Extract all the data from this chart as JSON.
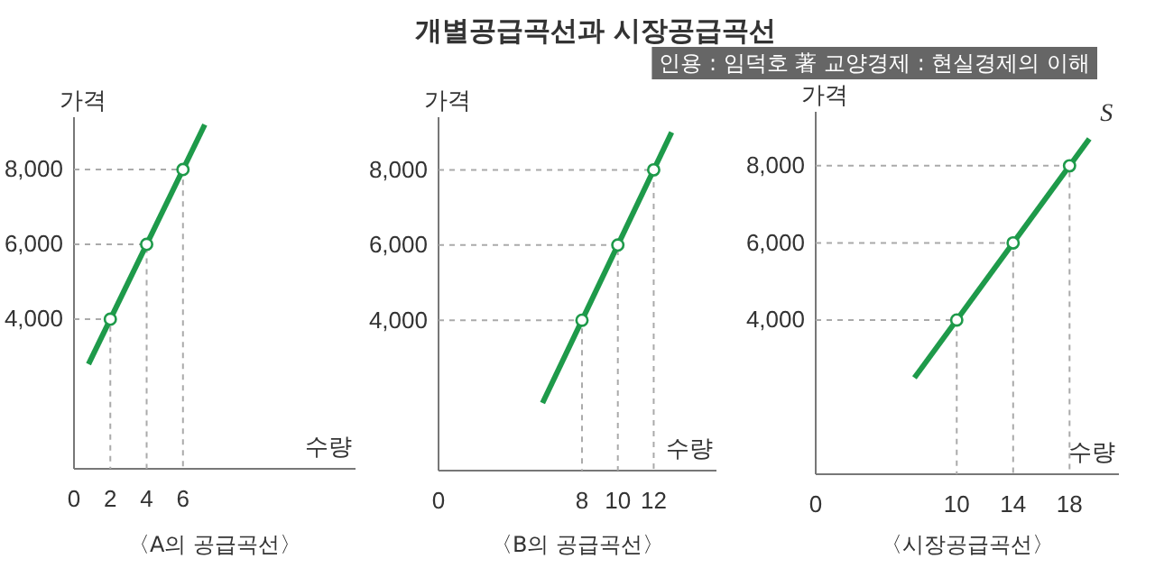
{
  "chart_data": [
    {
      "type": "line",
      "title": "〈A의 공급곡선〉",
      "xlabel": "수량",
      "ylabel": "가격",
      "annotations": [
        "개별공급곡선과 시장공급곡선"
      ],
      "xlim": [
        0,
        15.5
      ],
      "ylim": [
        0,
        9400
      ],
      "xticks": [
        0,
        2,
        4,
        6
      ],
      "yticks": [
        {
          "value": 4000,
          "label": "4,000"
        },
        {
          "value": 6000,
          "label": "6,000"
        },
        {
          "value": 8000,
          "label": "8,000"
        }
      ],
      "series": [
        {
          "color": "#aaaaaa",
          "line_style": "dashed",
          "x": [
            0,
            2,
            2
          ],
          "values": [
            4000,
            4000,
            0
          ]
        },
        {
          "color": "#aaaaaa",
          "line_style": "dashed",
          "x": [
            0,
            4,
            4
          ],
          "values": [
            6000,
            6000,
            0
          ]
        },
        {
          "color": "#aaaaaa",
          "line_style": "dashed",
          "x": [
            0,
            6,
            6
          ],
          "values": [
            8000,
            8000,
            0
          ]
        },
        {
          "color": "#1e9a4a",
          "x": [
            0.8,
            7.2
          ],
          "values": [
            2800,
            9200
          ]
        },
        {
          "type": "scatter",
          "marker": "circle",
          "color": "#1e9a4a",
          "x": [
            2,
            4,
            6
          ],
          "values": [
            4000,
            6000,
            8000
          ]
        }
      ]
    },
    {
      "type": "line",
      "title": "〈B의 공급곡선〉",
      "xlabel": "수량",
      "ylabel": "가격",
      "xlim": [
        0,
        15.5
      ],
      "ylim": [
        0,
        9400
      ],
      "xticks": [
        0,
        8,
        10,
        12
      ],
      "yticks": [
        {
          "value": 4000,
          "label": "4,000"
        },
        {
          "value": 6000,
          "label": "6,000"
        },
        {
          "value": 8000,
          "label": "8,000"
        }
      ],
      "series": [
        {
          "color": "#aaaaaa",
          "line_style": "dashed",
          "x": [
            0,
            8,
            8
          ],
          "values": [
            4000,
            4000,
            0
          ]
        },
        {
          "color": "#aaaaaa",
          "line_style": "dashed",
          "x": [
            0,
            10,
            10
          ],
          "values": [
            6000,
            6000,
            0
          ]
        },
        {
          "color": "#aaaaaa",
          "line_style": "dashed",
          "x": [
            0,
            12,
            12
          ],
          "values": [
            8000,
            8000,
            0
          ]
        },
        {
          "color": "#1e9a4a",
          "x": [
            5.8,
            13
          ],
          "values": [
            1800,
            9000
          ]
        },
        {
          "type": "scatter",
          "marker": "circle",
          "color": "#1e9a4a",
          "x": [
            8,
            10,
            12
          ],
          "values": [
            4000,
            6000,
            8000
          ]
        }
      ]
    },
    {
      "type": "line",
      "title": "〈시장공급곡선〉",
      "xlabel": "수량",
      "ylabel": "가격",
      "annotations": [
        "인용 : 임덕호 著 교양경제 : 현실경제의 이해",
        {
          "text": "S",
          "x": 19.4,
          "y": 8700
        }
      ],
      "xlim": [
        0,
        21.5
      ],
      "ylim": [
        0,
        9400
      ],
      "xticks": [
        0,
        10,
        14,
        18
      ],
      "yticks": [
        {
          "value": 4000,
          "label": "4,000"
        },
        {
          "value": 6000,
          "label": "6,000"
        },
        {
          "value": 8000,
          "label": "8,000"
        }
      ],
      "series": [
        {
          "color": "#aaaaaa",
          "line_style": "dashed",
          "x": [
            0,
            10,
            10
          ],
          "values": [
            4000,
            4000,
            0
          ]
        },
        {
          "color": "#aaaaaa",
          "line_style": "dashed",
          "x": [
            0,
            14,
            14
          ],
          "values": [
            6000,
            6000,
            0
          ]
        },
        {
          "color": "#aaaaaa",
          "line_style": "dashed",
          "x": [
            0,
            18,
            18
          ],
          "values": [
            8000,
            8000,
            0
          ]
        },
        {
          "color": "#1e9a4a",
          "x": [
            7,
            19.4
          ],
          "values": [
            2500,
            8700
          ]
        },
        {
          "type": "scatter",
          "marker": "circle",
          "color": "#1e9a4a",
          "x": [
            10,
            14,
            18
          ],
          "values": [
            4000,
            6000,
            8000
          ]
        }
      ]
    }
  ]
}
